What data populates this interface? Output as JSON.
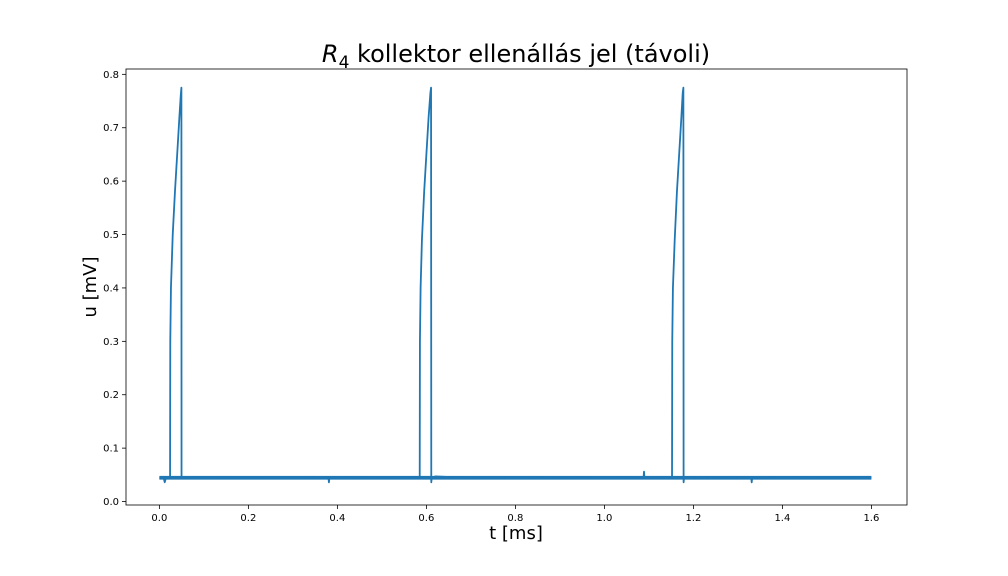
{
  "chart_data": {
    "type": "line",
    "title": {
      "symbol": "R",
      "subscript": "4",
      "text": " kollektor ellenállás jel (távoli)"
    },
    "xlabel": "t [ms]",
    "ylabel": "u [mV]",
    "xlim": [
      -0.075,
      1.68
    ],
    "ylim": [
      -0.0065,
      0.81
    ],
    "xticks": [
      0.0,
      0.2,
      0.4,
      0.6,
      0.8,
      1.0,
      1.2,
      1.4,
      1.6
    ],
    "xtick_labels": [
      "0.0",
      "0.2",
      "0.4",
      "0.6",
      "0.8",
      "1.0",
      "1.2",
      "1.4",
      "1.6"
    ],
    "yticks": [
      0.0,
      0.1,
      0.2,
      0.3,
      0.4,
      0.5,
      0.6,
      0.7,
      0.8
    ],
    "ytick_labels": [
      "0.0",
      "0.1",
      "0.2",
      "0.3",
      "0.4",
      "0.5",
      "0.6",
      "0.7",
      "0.8"
    ],
    "grid": false,
    "series": [
      {
        "color": "#1f77b4",
        "baseline_band": [
          0.041,
          0.048
        ],
        "x": [
          0.0,
          0.005,
          0.01,
          0.012,
          0.015,
          0.02,
          0.024,
          0.0245,
          0.026,
          0.03,
          0.035,
          0.04,
          0.045,
          0.048,
          0.0495,
          0.0498,
          0.05,
          0.055,
          0.1,
          0.2,
          0.3,
          0.38,
          0.381,
          0.382,
          0.4,
          0.5,
          0.58,
          0.585,
          0.5855,
          0.587,
          0.59,
          0.595,
          0.6,
          0.605,
          0.609,
          0.6105,
          0.611,
          0.612,
          0.62,
          0.7,
          0.8,
          0.9,
          1.0,
          1.088,
          1.089,
          1.09,
          1.1,
          1.15,
          1.152,
          1.1525,
          1.154,
          1.158,
          1.163,
          1.168,
          1.173,
          1.176,
          1.1775,
          1.178,
          1.179,
          1.185,
          1.25,
          1.33,
          1.331,
          1.332,
          1.4,
          1.5,
          1.6
        ],
        "y": [
          0.045,
          0.044,
          0.043,
          0.036,
          0.045,
          0.046,
          0.045,
          0.3,
          0.4,
          0.5,
          0.58,
          0.65,
          0.72,
          0.76,
          0.775,
          0.045,
          0.047,
          0.044,
          0.045,
          0.044,
          0.045,
          0.044,
          0.036,
          0.044,
          0.045,
          0.044,
          0.045,
          0.046,
          0.3,
          0.4,
          0.49,
          0.58,
          0.65,
          0.72,
          0.765,
          0.775,
          0.036,
          0.045,
          0.047,
          0.044,
          0.045,
          0.044,
          0.045,
          0.044,
          0.056,
          0.045,
          0.044,
          0.045,
          0.046,
          0.3,
          0.4,
          0.49,
          0.58,
          0.65,
          0.72,
          0.765,
          0.775,
          0.036,
          0.045,
          0.046,
          0.044,
          0.045,
          0.036,
          0.044,
          0.045,
          0.044,
          0.045
        ]
      }
    ]
  }
}
